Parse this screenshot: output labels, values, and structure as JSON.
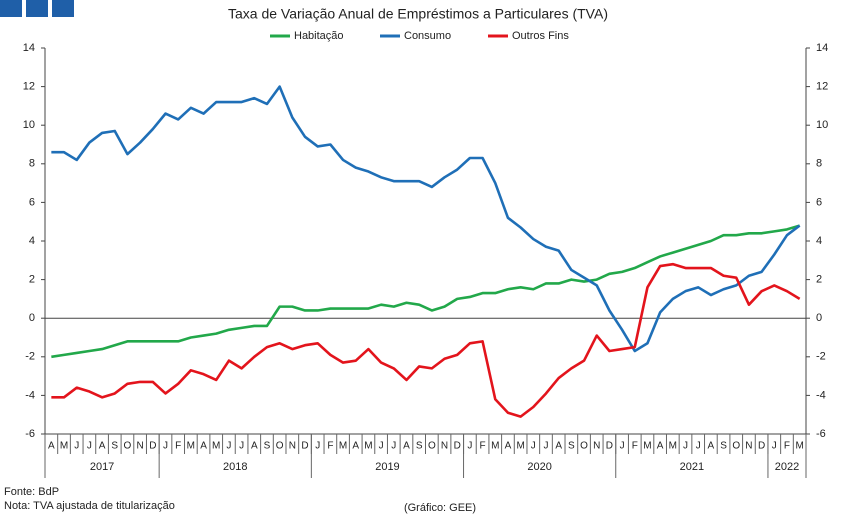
{
  "chart_data": {
    "type": "line",
    "title": "Taxa de Variação Anual de Empréstimos a Particulares (TVA)",
    "categories": [
      "A",
      "M",
      "J",
      "J",
      "A",
      "S",
      "O",
      "N",
      "D",
      "J",
      "F",
      "M",
      "A",
      "M",
      "J",
      "J",
      "A",
      "S",
      "O",
      "N",
      "D",
      "J",
      "F",
      "M",
      "A",
      "M",
      "J",
      "J",
      "A",
      "S",
      "O",
      "N",
      "D",
      "J",
      "F",
      "M",
      "A",
      "M",
      "J",
      "J",
      "A",
      "S",
      "O",
      "N",
      "D",
      "J",
      "F",
      "M",
      "A",
      "M",
      "J",
      "J",
      "A",
      "S",
      "O",
      "N",
      "D",
      "J",
      "F",
      "M"
    ],
    "x_groups": [
      {
        "label": "2017",
        "count": 9
      },
      {
        "label": "2018",
        "count": 12
      },
      {
        "label": "2019",
        "count": 12
      },
      {
        "label": "2020",
        "count": 12
      },
      {
        "label": "2021",
        "count": 12
      },
      {
        "label": "2022",
        "count": 3
      }
    ],
    "series": [
      {
        "name": "Habitação",
        "color": "#22a84a",
        "values": [
          -2.0,
          -1.9,
          -1.8,
          -1.7,
          -1.6,
          -1.4,
          -1.2,
          -1.2,
          -1.2,
          -1.2,
          -1.2,
          -1.0,
          -0.9,
          -0.8,
          -0.6,
          -0.5,
          -0.4,
          -0.4,
          0.6,
          0.6,
          0.4,
          0.4,
          0.5,
          0.5,
          0.5,
          0.5,
          0.7,
          0.6,
          0.8,
          0.7,
          0.4,
          0.6,
          1.0,
          1.1,
          1.3,
          1.3,
          1.5,
          1.6,
          1.5,
          1.8,
          1.8,
          2.0,
          1.9,
          2.0,
          2.3,
          2.4,
          2.6,
          2.9,
          3.2,
          3.4,
          3.6,
          3.8,
          4.0,
          4.3,
          4.3,
          4.4,
          4.4,
          4.5,
          4.6,
          4.8
        ]
      },
      {
        "name": "Consumo",
        "color": "#1f6fb7",
        "values": [
          8.6,
          8.6,
          8.2,
          9.1,
          9.6,
          9.7,
          8.5,
          9.1,
          9.8,
          10.6,
          10.3,
          10.9,
          10.6,
          11.2,
          11.2,
          11.2,
          11.4,
          11.1,
          12.0,
          10.4,
          9.4,
          8.9,
          9.0,
          8.2,
          7.8,
          7.6,
          7.3,
          7.1,
          7.1,
          7.1,
          6.8,
          7.3,
          7.7,
          8.3,
          8.3,
          7.0,
          5.2,
          4.7,
          4.1,
          3.7,
          3.5,
          2.5,
          2.1,
          1.7,
          0.4,
          -0.6,
          -1.7,
          -1.3,
          0.3,
          1.0,
          1.4,
          1.6,
          1.2,
          1.5,
          1.7,
          2.2,
          2.4,
          3.3,
          4.3,
          4.8
        ]
      },
      {
        "name": "Outros Fins",
        "color": "#e3141c",
        "values": [
          -4.1,
          -4.1,
          -3.6,
          -3.8,
          -4.1,
          -3.9,
          -3.4,
          -3.3,
          -3.3,
          -3.9,
          -3.4,
          -2.7,
          -2.9,
          -3.2,
          -2.2,
          -2.6,
          -2.0,
          -1.5,
          -1.3,
          -1.6,
          -1.4,
          -1.3,
          -1.9,
          -2.3,
          -2.2,
          -1.6,
          -2.3,
          -2.6,
          -3.2,
          -2.5,
          -2.6,
          -2.1,
          -1.9,
          -1.3,
          -1.2,
          -4.2,
          -4.9,
          -5.1,
          -4.6,
          -3.9,
          -3.1,
          -2.6,
          -2.2,
          -0.9,
          -1.7,
          -1.6,
          -1.5,
          1.6,
          2.7,
          2.8,
          2.6,
          2.6,
          2.6,
          2.2,
          2.1,
          0.7,
          1.4,
          1.7,
          1.4,
          1.0
        ]
      }
    ],
    "ylim": [
      -6,
      14
    ],
    "yticks": [
      -6,
      -4,
      -2,
      0,
      2,
      4,
      6,
      8,
      10,
      12,
      14
    ],
    "y2lim": [
      -6,
      14
    ],
    "y2ticks": [
      -6,
      -4,
      -2,
      0,
      2,
      4,
      6,
      8,
      10,
      12,
      14
    ],
    "source": "Fonte: BdP",
    "note": "Nota: TVA ajustada de titularização",
    "credit": "(Gráfico: GEE)"
  }
}
